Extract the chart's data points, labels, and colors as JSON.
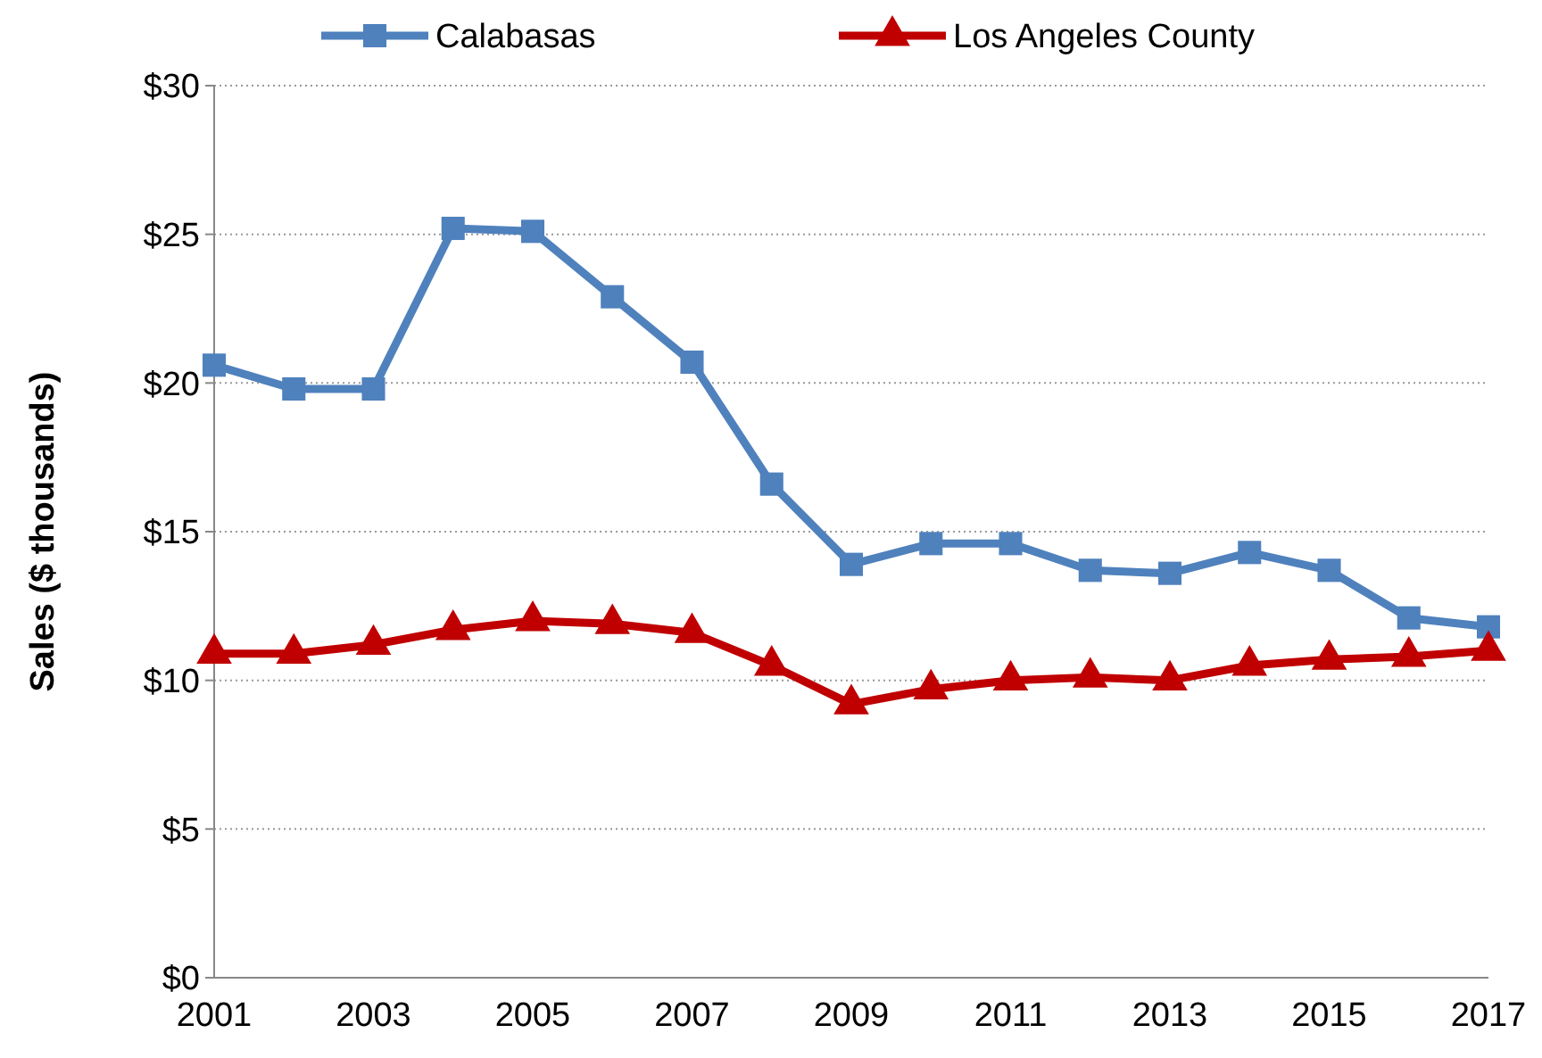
{
  "chart_data": {
    "type": "line",
    "ylabel": "Sales ($ thousands)",
    "categories": [
      "2001",
      null,
      "2003",
      null,
      "2005",
      null,
      "2007",
      null,
      "2009",
      null,
      "2011",
      null,
      "2013",
      null,
      "2015",
      null,
      "2017"
    ],
    "ylim": [
      0,
      30
    ],
    "yticks": [
      {
        "value": 0,
        "label": "$0"
      },
      {
        "value": 5,
        "label": "$5"
      },
      {
        "value": 10,
        "label": "$10"
      },
      {
        "value": 15,
        "label": "$15"
      },
      {
        "value": 20,
        "label": "$20"
      },
      {
        "value": 25,
        "label": "$25"
      },
      {
        "value": 30,
        "label": "$30"
      }
    ],
    "grid": "y",
    "legend": "top",
    "series": [
      {
        "name": "Calabasas",
        "color": "#4f81bd",
        "marker": "square",
        "values": [
          20.6,
          19.8,
          19.8,
          25.2,
          25.1,
          22.9,
          20.7,
          16.6,
          13.9,
          14.6,
          14.6,
          13.7,
          13.6,
          14.3,
          13.7,
          12.1,
          11.8
        ]
      },
      {
        "name": "Los Angeles County",
        "color": "#c00000",
        "marker": "triangle",
        "values": [
          10.9,
          10.9,
          11.2,
          11.7,
          12.0,
          11.9,
          11.6,
          10.5,
          9.2,
          9.7,
          10.0,
          10.1,
          10.0,
          10.5,
          10.7,
          10.8,
          11.0
        ]
      }
    ]
  }
}
